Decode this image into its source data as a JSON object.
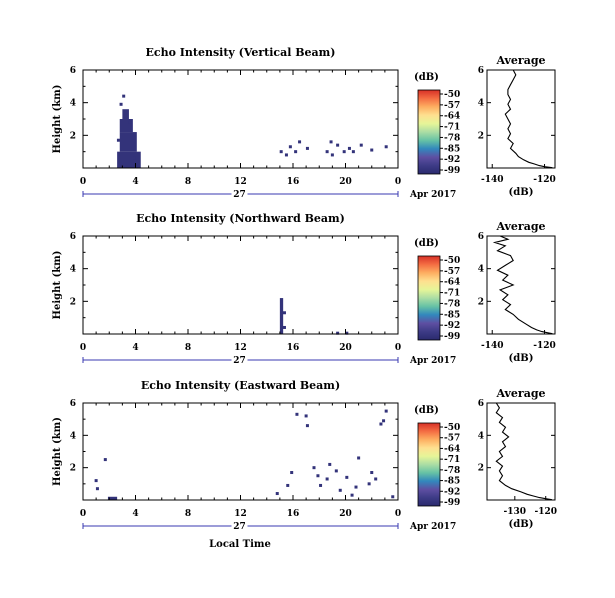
{
  "figure": {
    "bottom_xlabel": "Local Time",
    "date_label": "Apr 2017",
    "day_label": "27",
    "colorbar_unit": "(dB)",
    "colorbar_ticks": [
      "-50",
      "-57",
      "-64",
      "-71",
      "-78",
      "-85",
      "-92",
      "-99"
    ],
    "colorbar_colors": [
      "#d73027",
      "#f46d43",
      "#fdae61",
      "#fee090",
      "#e6f598",
      "#abdda4",
      "#66c2a5",
      "#3288bd",
      "#5e4fa2",
      "#3d3b86",
      "#2a2a6e"
    ],
    "cell_color": "#33337a",
    "profile_color": "#000000"
  },
  "chart_data": [
    {
      "type": "heatmap",
      "name": "vertical",
      "title": "Echo Intensity (Vertical Beam)",
      "ylabel": "Height (km)",
      "xlim": [
        0,
        24
      ],
      "ylim": [
        0,
        6
      ],
      "x_ticks": [
        "0",
        "4",
        "8",
        "12",
        "16",
        "20",
        "0"
      ],
      "y_ticks": [
        "2",
        "4",
        "6"
      ],
      "blocks": [
        {
          "x0": 2.6,
          "x1": 4.4,
          "y0": 0.0,
          "y1": 1.0
        },
        {
          "x0": 2.8,
          "x1": 4.1,
          "y0": 1.0,
          "y1": 2.2
        },
        {
          "x0": 2.8,
          "x1": 3.8,
          "y0": 2.2,
          "y1": 3.0
        },
        {
          "x0": 3.0,
          "x1": 3.5,
          "y0": 3.0,
          "y1": 3.6
        }
      ],
      "cells": [
        [
          2.9,
          3.9
        ],
        [
          3.1,
          4.4
        ],
        [
          3.2,
          3.2
        ],
        [
          3.6,
          2.8
        ],
        [
          2.7,
          1.7
        ],
        [
          3.9,
          0.6
        ],
        [
          15.1,
          1.0
        ],
        [
          15.5,
          0.8
        ],
        [
          15.8,
          1.3
        ],
        [
          16.2,
          1.0
        ],
        [
          16.5,
          1.6
        ],
        [
          17.1,
          1.2
        ],
        [
          18.6,
          1.0
        ],
        [
          18.9,
          1.6
        ],
        [
          19.0,
          0.8
        ],
        [
          19.4,
          1.4
        ],
        [
          19.9,
          1.0
        ],
        [
          20.3,
          1.2
        ],
        [
          20.6,
          1.0
        ],
        [
          21.2,
          1.4
        ],
        [
          22.0,
          1.1
        ],
        [
          23.1,
          1.3
        ]
      ],
      "profile": {
        "title": "Average",
        "xlim": [
          -142,
          -116
        ],
        "x_ticks": [
          "-140",
          "-120"
        ],
        "xlabel": "(dB)",
        "x": [
          -132,
          -131,
          -132,
          -133,
          -134,
          -134,
          -133,
          -134,
          -133,
          -135,
          -134,
          -133,
          -134,
          -133,
          -134,
          -132,
          -133,
          -131,
          -130,
          -128,
          -126,
          -124,
          -122,
          -120,
          -117
        ],
        "y": [
          6.0,
          5.7,
          5.4,
          5.1,
          4.8,
          4.5,
          4.2,
          3.9,
          3.6,
          3.3,
          3.0,
          2.7,
          2.4,
          2.1,
          1.8,
          1.5,
          1.2,
          0.9,
          0.7,
          0.5,
          0.35,
          0.25,
          0.15,
          0.08,
          0.02
        ]
      }
    },
    {
      "type": "heatmap",
      "name": "northward",
      "title": "Echo Intensity (Northward Beam)",
      "ylabel": "Height (km)",
      "xlim": [
        0,
        24
      ],
      "ylim": [
        0,
        6
      ],
      "x_ticks": [
        "0",
        "4",
        "8",
        "12",
        "16",
        "20",
        "0"
      ],
      "y_ticks": [
        "2",
        "4",
        "6"
      ],
      "blocks": [
        {
          "x0": 15.0,
          "x1": 15.25,
          "y0": 0.0,
          "y1": 2.2
        }
      ],
      "cells": [
        [
          15.35,
          1.3
        ],
        [
          15.35,
          0.4
        ],
        [
          19.4,
          0.05
        ],
        [
          20.1,
          0.05
        ]
      ],
      "profile": {
        "title": "Average",
        "xlim": [
          -142,
          -116
        ],
        "x_ticks": [
          "-140",
          "-120"
        ],
        "xlabel": "(dB)",
        "x": [
          -137,
          -134,
          -139,
          -135,
          -138,
          -133,
          -132,
          -135,
          -138,
          -134,
          -136,
          -132,
          -137,
          -134,
          -136,
          -133,
          -135,
          -132,
          -130,
          -127,
          -125,
          -123,
          -121,
          -119,
          -117
        ],
        "y": [
          6.0,
          5.8,
          5.6,
          5.4,
          5.1,
          4.8,
          4.5,
          4.2,
          3.9,
          3.6,
          3.3,
          3.0,
          2.7,
          2.4,
          2.1,
          1.8,
          1.5,
          1.2,
          0.9,
          0.6,
          0.4,
          0.25,
          0.15,
          0.08,
          0.02
        ]
      }
    },
    {
      "type": "heatmap",
      "name": "eastward",
      "title": "Echo Intensity (Eastward Beam)",
      "ylabel": "Height (km)",
      "xlim": [
        0,
        24
      ],
      "ylim": [
        0,
        6
      ],
      "x_ticks": [
        "0",
        "4",
        "8",
        "12",
        "16",
        "20",
        "0"
      ],
      "y_ticks": [
        "2",
        "4",
        "6"
      ],
      "blocks": [
        {
          "x0": 1.9,
          "x1": 2.6,
          "y0": 0.0,
          "y1": 0.2
        }
      ],
      "cells": [
        [
          1.0,
          1.2
        ],
        [
          1.1,
          0.7
        ],
        [
          1.7,
          2.5
        ],
        [
          14.8,
          0.4
        ],
        [
          15.6,
          0.9
        ],
        [
          15.9,
          1.7
        ],
        [
          16.3,
          5.3
        ],
        [
          17.0,
          5.2
        ],
        [
          17.1,
          4.6
        ],
        [
          17.6,
          2.0
        ],
        [
          17.9,
          1.5
        ],
        [
          18.1,
          0.9
        ],
        [
          18.6,
          1.3
        ],
        [
          18.8,
          2.2
        ],
        [
          19.3,
          1.8
        ],
        [
          19.6,
          0.6
        ],
        [
          20.1,
          1.4
        ],
        [
          20.5,
          0.3
        ],
        [
          20.8,
          0.8
        ],
        [
          21.0,
          2.6
        ],
        [
          21.8,
          1.0
        ],
        [
          22.0,
          1.7
        ],
        [
          22.3,
          1.3
        ],
        [
          22.7,
          4.7
        ],
        [
          22.9,
          4.9
        ],
        [
          23.1,
          5.5
        ],
        [
          23.6,
          0.2
        ]
      ],
      "profile": {
        "title": "Average",
        "xlim": [
          -139,
          -117
        ],
        "x_ticks": [
          "-130",
          "-120"
        ],
        "xlabel": "(dB)",
        "x": [
          -136,
          -135,
          -136,
          -134,
          -135,
          -133,
          -134,
          -132,
          -134,
          -133,
          -135,
          -134,
          -136,
          -134,
          -135,
          -134,
          -135,
          -133,
          -131,
          -128,
          -126,
          -124,
          -122,
          -120,
          -118
        ],
        "y": [
          6.0,
          5.7,
          5.4,
          5.1,
          4.8,
          4.5,
          4.2,
          3.9,
          3.6,
          3.3,
          3.0,
          2.7,
          2.4,
          2.1,
          1.8,
          1.5,
          1.2,
          0.9,
          0.7,
          0.5,
          0.35,
          0.25,
          0.15,
          0.08,
          0.02
        ]
      }
    }
  ]
}
